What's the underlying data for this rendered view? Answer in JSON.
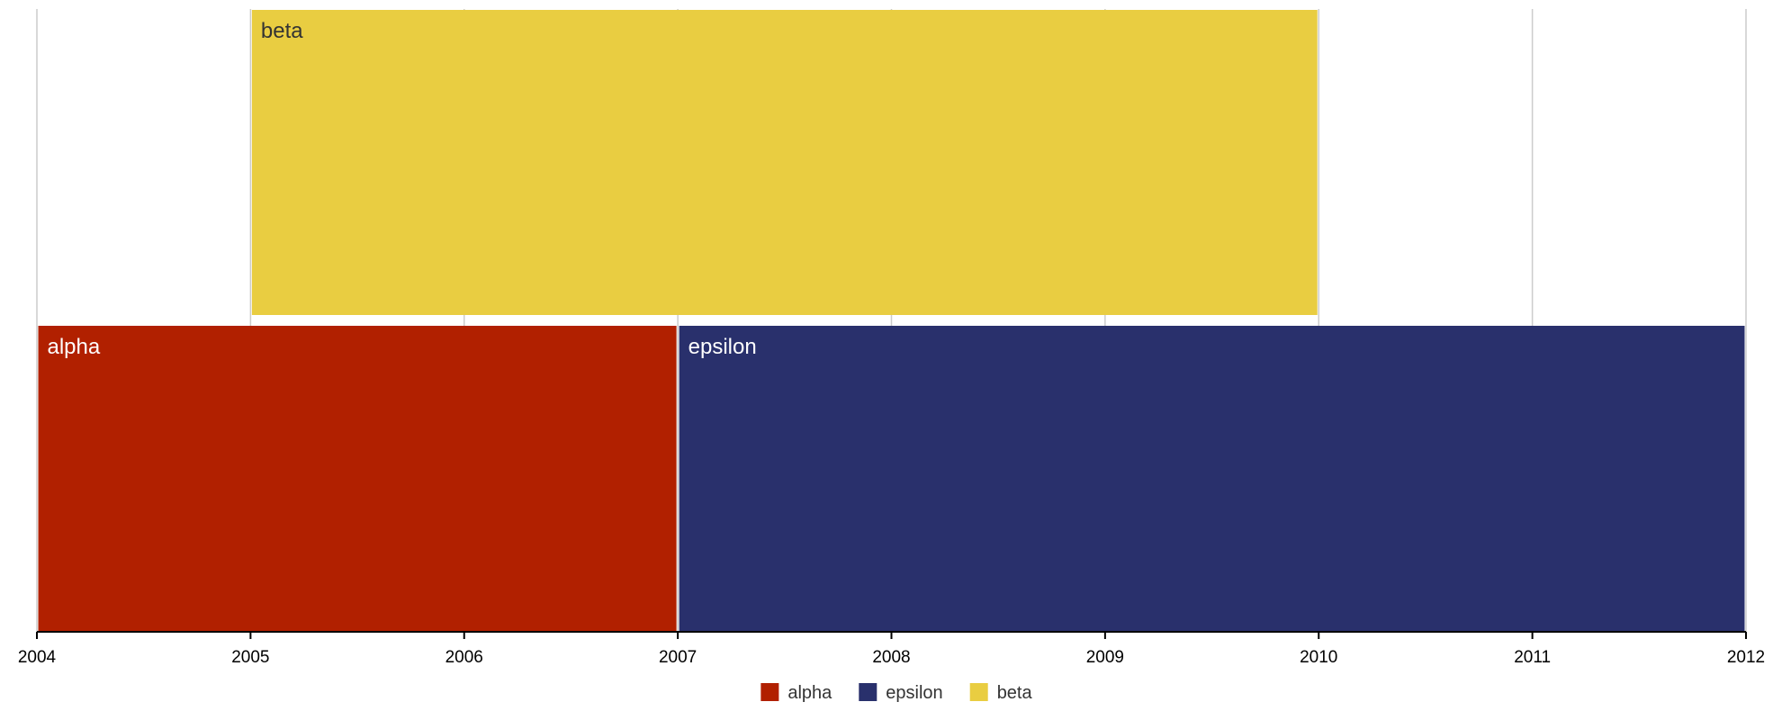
{
  "chart_data": {
    "type": "timeline",
    "x_axis": {
      "min": 2004,
      "max": 2012,
      "ticks": [
        2004,
        2005,
        2006,
        2007,
        2008,
        2009,
        2010,
        2011,
        2012
      ],
      "tick_labels": [
        "2004",
        "2005",
        "2006",
        "2007",
        "2008",
        "2009",
        "2010",
        "2011",
        "2012"
      ],
      "grid": true
    },
    "rows": 2,
    "bars": [
      {
        "name": "alpha",
        "label": "alpha",
        "start": 2004,
        "end": 2007,
        "row": 1,
        "color": "#b12000",
        "text_color": "#ffffff"
      },
      {
        "name": "epsilon",
        "label": "epsilon",
        "start": 2007,
        "end": 2012,
        "row": 1,
        "color": "#29306c",
        "text_color": "#ffffff"
      },
      {
        "name": "beta",
        "label": "beta",
        "start": 2005,
        "end": 2010,
        "row": 0,
        "color": "#e9cd41",
        "text_color": "#333333"
      }
    ],
    "legend": {
      "placement": "bottom-center",
      "items": [
        {
          "label": "alpha",
          "color": "#b12000"
        },
        {
          "label": "epsilon",
          "color": "#29306c"
        },
        {
          "label": "beta",
          "color": "#e9cd41"
        }
      ]
    },
    "colors": {
      "grid": "#cccccc",
      "axis": "#000000"
    }
  }
}
